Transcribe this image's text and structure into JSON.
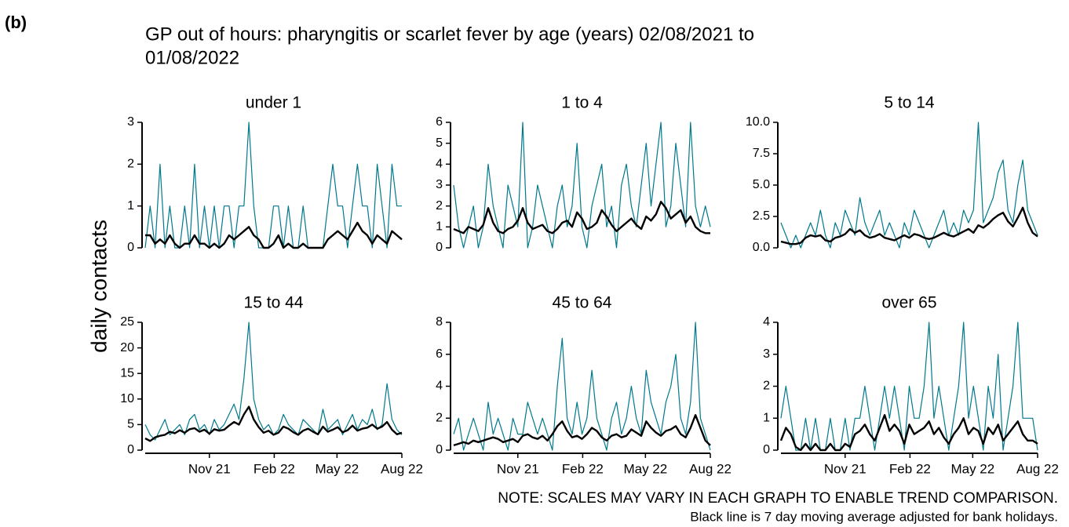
{
  "panel_label": "(b)",
  "chart_data": {
    "type": "line",
    "title": [
      "GP out of hours: pharyngitis or scarlet fever by age (years) 02/08/2021 to",
      "01/08/2022"
    ],
    "ylabel": "daily contacts",
    "note": "NOTE: SCALES MAY VARY IN EACH GRAPH TO ENABLE TREND COMPARISON.",
    "footnote": "Black line is 7 day moving average adjusted for bank holidays.",
    "xlim": [
      "2021-08-02",
      "2022-08-01"
    ],
    "xticks": [
      {
        "value": "2021-11-01",
        "label": "Nov 21"
      },
      {
        "value": "2022-02-01",
        "label": "Feb 22"
      },
      {
        "value": "2022-05-01",
        "label": "May 22"
      },
      {
        "value": "2022-08-01",
        "label": "Aug 22"
      }
    ],
    "x": [
      "2021-08-02",
      "2021-08-09",
      "2021-08-16",
      "2021-08-23",
      "2021-08-30",
      "2021-09-06",
      "2021-09-13",
      "2021-09-20",
      "2021-09-27",
      "2021-10-04",
      "2021-10-11",
      "2021-10-18",
      "2021-10-25",
      "2021-11-01",
      "2021-11-08",
      "2021-11-15",
      "2021-11-22",
      "2021-11-29",
      "2021-12-06",
      "2021-12-13",
      "2021-12-20",
      "2021-12-27",
      "2022-01-03",
      "2022-01-10",
      "2022-01-17",
      "2022-01-24",
      "2022-01-31",
      "2022-02-07",
      "2022-02-14",
      "2022-02-21",
      "2022-02-28",
      "2022-03-07",
      "2022-03-14",
      "2022-03-21",
      "2022-03-28",
      "2022-04-04",
      "2022-04-11",
      "2022-04-18",
      "2022-04-25",
      "2022-05-02",
      "2022-05-09",
      "2022-05-16",
      "2022-05-23",
      "2022-05-30",
      "2022-06-06",
      "2022-06-13",
      "2022-06-20",
      "2022-06-27",
      "2022-07-04",
      "2022-07-11",
      "2022-07-18",
      "2022-07-25",
      "2022-08-01"
    ],
    "panels": [
      {
        "title": "under 1",
        "ylim": [
          0,
          3
        ],
        "yticks": [
          0,
          1,
          2,
          3
        ],
        "show_xaxis": false,
        "series": [
          {
            "color": "#00798c",
            "values": [
              0,
              1,
              0,
              2,
              0,
              1,
              0,
              0,
              1,
              0,
              2,
              0,
              1,
              0,
              1,
              0,
              1,
              1,
              0,
              1,
              1,
              3,
              1,
              0,
              0,
              0,
              1,
              1,
              0,
              1,
              0,
              0,
              1,
              0,
              0,
              0,
              0,
              1,
              2,
              1,
              1,
              0,
              1,
              2,
              1,
              1,
              0,
              2,
              1,
              0,
              2,
              1,
              1
            ]
          },
          {
            "color": "#000000",
            "values": [
              0.3,
              0.3,
              0.1,
              0.2,
              0.1,
              0.3,
              0.1,
              0,
              0.1,
              0.1,
              0.3,
              0.1,
              0.1,
              0,
              0.1,
              0,
              0.1,
              0.3,
              0.2,
              0.3,
              0.4,
              0.5,
              0.3,
              0.2,
              0,
              0,
              0.1,
              0.3,
              0,
              0.1,
              0,
              0,
              0.1,
              0,
              0,
              0,
              0,
              0.2,
              0.3,
              0.4,
              0.3,
              0.2,
              0.4,
              0.6,
              0.4,
              0.3,
              0.1,
              0.3,
              0.2,
              0.1,
              0.4,
              0.3,
              0.2
            ]
          }
        ]
      },
      {
        "title": "1 to 4",
        "ylim": [
          0,
          6
        ],
        "yticks": [
          0,
          1,
          2,
          3,
          4,
          5,
          6
        ],
        "show_xaxis": false,
        "series": [
          {
            "color": "#00798c",
            "values": [
              3,
              1,
              0,
              1,
              2,
              0,
              1,
              4,
              2,
              1,
              0,
              3,
              2,
              1,
              6,
              0,
              1,
              3,
              2,
              1,
              0,
              2,
              3,
              1,
              2,
              5,
              1,
              0,
              2,
              3,
              4,
              1,
              2,
              0,
              3,
              4,
              2,
              1,
              3,
              5,
              2,
              4,
              6,
              1,
              2,
              5,
              3,
              1,
              6,
              2,
              1,
              2,
              1
            ]
          },
          {
            "color": "#000000",
            "values": [
              0.9,
              0.8,
              0.7,
              1.0,
              0.9,
              0.8,
              1.1,
              1.9,
              1.2,
              0.8,
              0.7,
              0.9,
              1.0,
              1.3,
              1.9,
              1.2,
              0.9,
              1.0,
              1.1,
              0.8,
              0.7,
              0.9,
              1.2,
              1.3,
              1.0,
              1.7,
              1.4,
              0.9,
              1.0,
              1.2,
              1.8,
              1.5,
              1.1,
              0.8,
              1.0,
              1.2,
              1.4,
              1.1,
              0.9,
              1.5,
              1.3,
              1.6,
              2.2,
              1.9,
              1.4,
              1.6,
              1.8,
              1.2,
              1.5,
              1.0,
              0.8,
              0.7,
              0.7
            ]
          }
        ]
      },
      {
        "title": "5 to 14",
        "ylim": [
          0,
          10
        ],
        "yticks": [
          {
            "value": 0,
            "label": "0.0"
          },
          2.5,
          {
            "value": 5,
            "label": "5.0"
          },
          7.5,
          {
            "value": 10,
            "label": "10.0"
          }
        ],
        "show_xaxis": false,
        "series": [
          {
            "color": "#00798c",
            "values": [
              2,
              1,
              0,
              1,
              0,
              1,
              2,
              1,
              3,
              1,
              0,
              2,
              1,
              3,
              2,
              1,
              4,
              2,
              1,
              2,
              3,
              1,
              2,
              1,
              0,
              2,
              1,
              3,
              2,
              1,
              0,
              1,
              2,
              3,
              1,
              2,
              1,
              3,
              2,
              3,
              10,
              2,
              3,
              4,
              6,
              7,
              3,
              2,
              5,
              7,
              3,
              2,
              1
            ]
          },
          {
            "color": "#000000",
            "values": [
              0.5,
              0.4,
              0.3,
              0.3,
              0.4,
              0.8,
              1.0,
              0.9,
              1.0,
              0.6,
              0.5,
              0.8,
              0.9,
              1.1,
              1.5,
              1.2,
              1.4,
              1.0,
              0.8,
              0.9,
              1.1,
              0.8,
              0.7,
              0.6,
              0.8,
              1.0,
              0.8,
              1.1,
              1.0,
              0.8,
              0.7,
              0.8,
              1.0,
              1.2,
              1.0,
              0.9,
              1.1,
              1.3,
              1.5,
              1.2,
              1.8,
              1.6,
              1.9,
              2.3,
              2.6,
              2.8,
              2.1,
              1.7,
              2.4,
              3.2,
              2.0,
              1.2,
              0.9
            ]
          }
        ]
      },
      {
        "title": "15 to 44",
        "ylim": [
          0,
          25
        ],
        "yticks": [
          0,
          5,
          10,
          15,
          20,
          25
        ],
        "show_xaxis": true,
        "series": [
          {
            "color": "#00798c",
            "values": [
              5,
              3,
              2,
              4,
              6,
              3,
              4,
              5,
              3,
              6,
              7,
              4,
              5,
              3,
              6,
              4,
              5,
              7,
              9,
              6,
              14,
              25,
              10,
              6,
              4,
              5,
              3,
              4,
              7,
              5,
              4,
              3,
              6,
              5,
              4,
              3,
              8,
              4,
              5,
              6,
              3,
              5,
              7,
              4,
              6,
              5,
              8,
              4,
              5,
              13,
              6,
              4,
              3
            ]
          },
          {
            "color": "#000000",
            "values": [
              2.3,
              1.8,
              2.5,
              2.8,
              3.0,
              3.6,
              3.3,
              3.9,
              3.4,
              4.1,
              4.3,
              3.6,
              4.0,
              3.2,
              4.1,
              3.8,
              4.0,
              4.8,
              5.5,
              5.0,
              7.0,
              8.5,
              6.0,
              4.5,
              3.4,
              3.8,
              3.0,
              3.4,
              4.6,
              4.2,
              3.5,
              3.0,
              3.8,
              4.2,
              3.6,
              3.1,
              4.6,
              3.6,
              4.0,
              4.5,
              3.5,
              3.9,
              4.8,
              3.8,
              4.2,
              4.4,
              5.0,
              4.2,
              4.6,
              5.5,
              4.0,
              3.1,
              3.4
            ]
          }
        ]
      },
      {
        "title": "45 to 64",
        "ylim": [
          0,
          8
        ],
        "yticks": [
          0,
          2,
          4,
          6,
          8
        ],
        "show_xaxis": true,
        "series": [
          {
            "color": "#00798c",
            "values": [
              1,
              2,
              0,
              1,
              2,
              1,
              0,
              3,
              1,
              2,
              1,
              0,
              2,
              1,
              1,
              3,
              2,
              1,
              2,
              1,
              0,
              4,
              7,
              2,
              1,
              3,
              1,
              2,
              5,
              2,
              1,
              0,
              2,
              3,
              1,
              2,
              4,
              2,
              1,
              5,
              3,
              2,
              1,
              3,
              4,
              6,
              2,
              1,
              3,
              8,
              2,
              1,
              0
            ]
          },
          {
            "color": "#000000",
            "values": [
              0.3,
              0.4,
              0.5,
              0.4,
              0.6,
              0.5,
              0.6,
              0.7,
              0.8,
              0.7,
              0.5,
              0.6,
              0.7,
              0.5,
              0.9,
              1.0,
              0.8,
              0.7,
              0.9,
              0.6,
              1.0,
              1.5,
              1.8,
              1.2,
              0.8,
              0.9,
              0.7,
              1.0,
              1.4,
              1.2,
              0.8,
              0.6,
              0.9,
              1.0,
              0.8,
              0.9,
              1.3,
              1.1,
              0.9,
              1.8,
              1.4,
              1.1,
              0.9,
              1.2,
              1.3,
              1.5,
              1.0,
              0.8,
              1.4,
              2.2,
              1.4,
              0.6,
              0.3
            ]
          }
        ]
      },
      {
        "title": "over 65",
        "ylim": [
          0,
          4
        ],
        "yticks": [
          0,
          1,
          2,
          3,
          4
        ],
        "show_xaxis": true,
        "series": [
          {
            "color": "#00798c",
            "values": [
              1,
              2,
              1,
              0,
              0,
              1,
              0,
              1,
              0,
              0,
              1,
              0,
              0,
              1,
              0,
              1,
              1,
              2,
              1,
              0,
              1,
              2,
              1,
              2,
              1,
              0,
              2,
              1,
              1,
              2,
              4,
              1,
              2,
              1,
              0,
              1,
              2,
              4,
              1,
              2,
              1,
              0,
              2,
              1,
              3,
              0,
              1,
              2,
              4,
              1,
              1,
              1,
              0
            ]
          },
          {
            "color": "#000000",
            "values": [
              0.3,
              0.7,
              0.5,
              0.1,
              0,
              0.2,
              0,
              0.2,
              0,
              0,
              0.2,
              0,
              0,
              0.2,
              0.1,
              0.5,
              0.6,
              0.8,
              0.5,
              0.3,
              0.7,
              1.1,
              0.6,
              0.8,
              0.6,
              0.2,
              0.8,
              0.5,
              0.6,
              0.7,
              0.9,
              0.5,
              0.7,
              0.4,
              0.2,
              0.5,
              0.7,
              1.0,
              0.5,
              0.7,
              0.6,
              0.2,
              0.7,
              0.5,
              0.8,
              0.3,
              0.5,
              0.7,
              0.9,
              0.5,
              0.3,
              0.3,
              0.2
            ]
          }
        ]
      }
    ]
  }
}
